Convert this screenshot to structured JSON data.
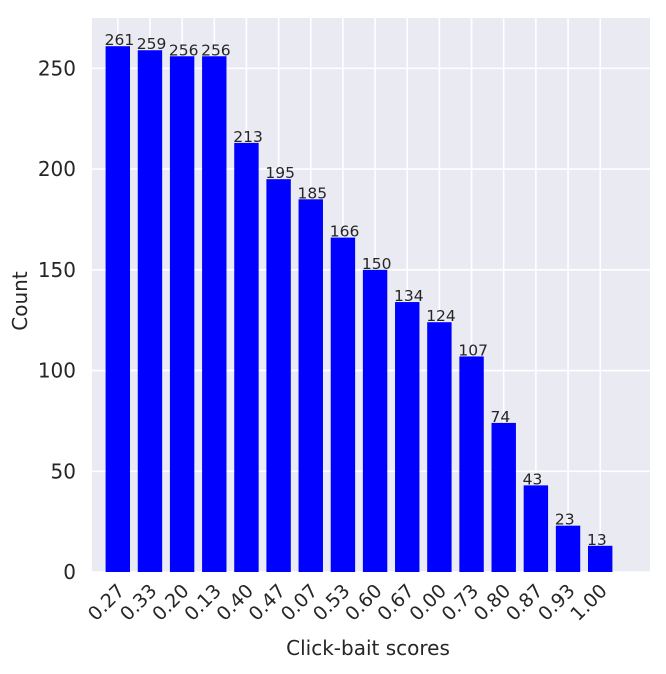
{
  "chart_data": {
    "type": "bar",
    "title": "",
    "xlabel": "Click-bait scores",
    "ylabel": "Count",
    "categories": [
      "0.27",
      "0.33",
      "0.20",
      "0.13",
      "0.40",
      "0.47",
      "0.07",
      "0.53",
      "0.60",
      "0.67",
      "0.00",
      "0.73",
      "0.80",
      "0.87",
      "0.93",
      "1.00"
    ],
    "values": [
      261,
      259,
      256,
      256,
      213,
      195,
      185,
      166,
      150,
      134,
      124,
      107,
      74,
      43,
      23,
      13
    ],
    "data_labels": [
      "261",
      "259",
      "256",
      "256",
      "213",
      "195",
      "185",
      "166",
      "150",
      "134",
      "124",
      "107",
      "74",
      "43",
      "23",
      "13"
    ],
    "ylim": [
      0,
      275
    ],
    "yticks": [
      0,
      50,
      100,
      150,
      200,
      250
    ],
    "ytick_labels": [
      "0",
      "50",
      "100",
      "150",
      "200",
      "250"
    ],
    "grid": true,
    "legend": "none",
    "colors": {
      "bar": "#0000ff",
      "background": "#eaeaf2",
      "grid": "#ffffff",
      "text": "#262626"
    }
  }
}
